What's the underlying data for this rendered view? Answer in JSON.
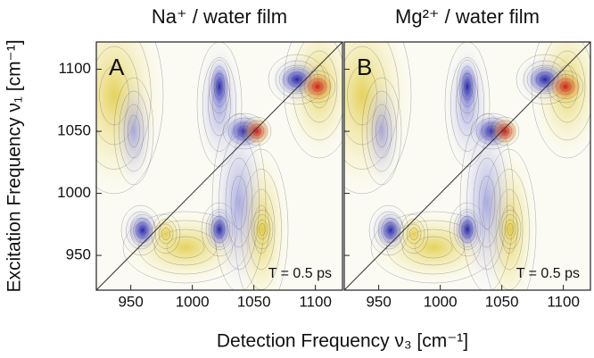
{
  "figure": {
    "xlabel": "Detection Frequency  ν₃  [cm⁻¹]",
    "ylabel": "Excitation Frequency  ν₁  [cm⁻¹]"
  },
  "chart_data": [
    {
      "type": "contour",
      "title": "Na⁺ / water film",
      "panel_label": "A",
      "annotation": "T = 0.5 ps",
      "xlim": [
        922,
        1122
      ],
      "ylim": [
        922,
        1122
      ],
      "xticks": [
        950,
        1000,
        1050,
        1100
      ],
      "yticks": [
        950,
        1000,
        1050,
        1100
      ],
      "show_ytick_labels": true,
      "diagonal": true
    },
    {
      "type": "contour",
      "title": "Mg²⁺ / water film",
      "panel_label": "B",
      "annotation": "T = 0.5 ps",
      "xlim": [
        922,
        1122
      ],
      "ylim": [
        922,
        1122
      ],
      "xticks": [
        950,
        1000,
        1050,
        1100
      ],
      "yticks": [
        950,
        1000,
        1050,
        1100
      ],
      "show_ytick_labels": false,
      "diagonal": true
    }
  ]
}
